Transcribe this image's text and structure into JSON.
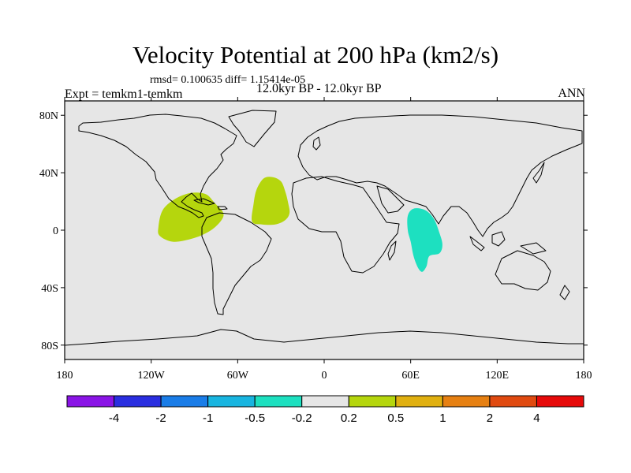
{
  "title": "Velocity Potential at 200 hPa (km2/s)",
  "stats": "rmsd= 0.100635  diff= 1.15414e-05",
  "expt": "Expt = temkm1-temkm",
  "period": "12.0kyr BP - 12.0kyr BP",
  "season": "ANN",
  "lat_ticks": [
    {
      "value": 80,
      "label": "80N"
    },
    {
      "value": 40,
      "label": "40N"
    },
    {
      "value": 0,
      "label": "0"
    },
    {
      "value": -40,
      "label": "40S"
    },
    {
      "value": -80,
      "label": "80S"
    }
  ],
  "lon_ticks": [
    {
      "value": -180,
      "label": "180"
    },
    {
      "value": -120,
      "label": "120W"
    },
    {
      "value": -60,
      "label": "60W"
    },
    {
      "value": 0,
      "label": "0"
    },
    {
      "value": 60,
      "label": "60E"
    },
    {
      "value": 120,
      "label": "120E"
    },
    {
      "value": 180,
      "label": "180"
    }
  ],
  "map_extent": {
    "lon": [
      -180,
      180
    ],
    "lat": [
      -90,
      90
    ]
  },
  "colors": {
    "ocean": "#e6e6e6",
    "coast": "#000000",
    "positive_fill": "#b5d60d",
    "negative_fill": "#1de0c0"
  },
  "anomalies": [
    {
      "name": "central-america-positive",
      "sign": "positive",
      "level": "0.2 to 0.5",
      "polygon": [
        [
          -115,
          2
        ],
        [
          -112,
          14
        ],
        [
          -103,
          22
        ],
        [
          -92,
          26
        ],
        [
          -82,
          25
        ],
        [
          -76,
          19
        ],
        [
          -70,
          12
        ],
        [
          -72,
          6
        ],
        [
          -80,
          -1
        ],
        [
          -92,
          -6
        ],
        [
          -105,
          -8
        ],
        [
          -114,
          -4
        ]
      ]
    },
    {
      "name": "atlantic-positive",
      "sign": "positive",
      "level": "0.2 to 0.5",
      "polygon": [
        [
          -50,
          6
        ],
        [
          -49,
          18
        ],
        [
          -47,
          28
        ],
        [
          -42,
          36
        ],
        [
          -36,
          37
        ],
        [
          -30,
          34
        ],
        [
          -27,
          27
        ],
        [
          -25,
          19
        ],
        [
          -24,
          12
        ],
        [
          -27,
          7
        ],
        [
          -34,
          4
        ],
        [
          -43,
          4
        ]
      ]
    },
    {
      "name": "indian-ocean-negative",
      "sign": "negative",
      "level": "-0.5 to -0.2",
      "polygon": [
        [
          62,
          15
        ],
        [
          70,
          14
        ],
        [
          76,
          8
        ],
        [
          80,
          -2
        ],
        [
          82,
          -10
        ],
        [
          80,
          -16
        ],
        [
          73,
          -18
        ],
        [
          71,
          -25
        ],
        [
          68,
          -29
        ],
        [
          65,
          -26
        ],
        [
          62,
          -18
        ],
        [
          60,
          -8
        ],
        [
          58,
          0
        ],
        [
          58,
          10
        ]
      ]
    }
  ],
  "colorbar": {
    "colors": [
      "#8a14e6",
      "#2a2ee0",
      "#1a7de8",
      "#18b5e0",
      "#1de0c0",
      "#e6e6e6",
      "#b5d60d",
      "#e0b010",
      "#e68012",
      "#e04a10",
      "#e60a0a"
    ],
    "labels": [
      "-4",
      "-2",
      "-1",
      "-0.5",
      "-0.2",
      "0.2",
      "0.5",
      "1",
      "2",
      "4"
    ]
  }
}
